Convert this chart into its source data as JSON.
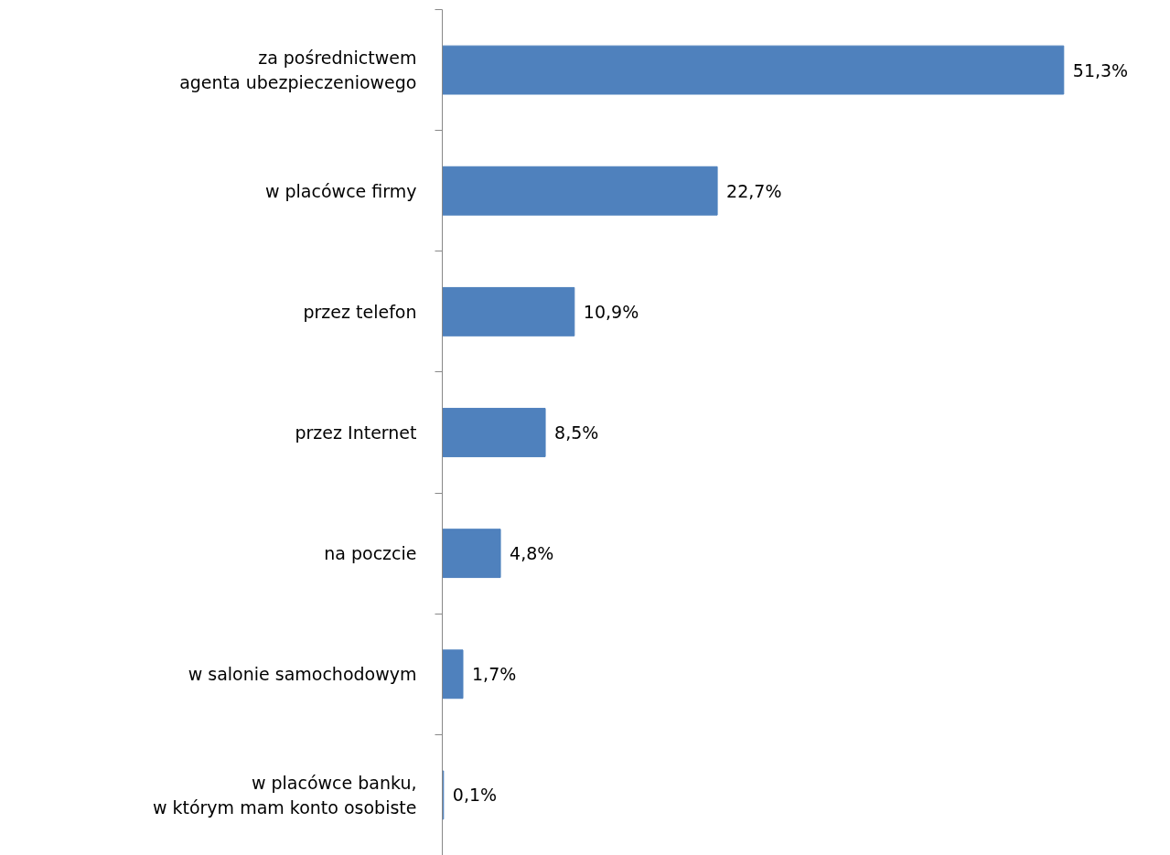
{
  "chart_data": {
    "type": "bar",
    "orientation": "horizontal",
    "categories": [
      "za pośrednictwem\nagenta ubezpieczeniowego",
      "w placówce firmy",
      "przez telefon",
      "przez Internet",
      "na poczcie",
      "w salonie samochodowym",
      "w placówce banku,\nw którym mam konto osobiste"
    ],
    "values": [
      51.3,
      22.7,
      10.9,
      8.5,
      4.8,
      1.7,
      0.1
    ],
    "value_labels": [
      "51,3%",
      "22,7%",
      "10,9%",
      "8,5%",
      "4,8%",
      "1,7%",
      "0,1%"
    ],
    "color": "#4f81bd",
    "grid": false
  }
}
